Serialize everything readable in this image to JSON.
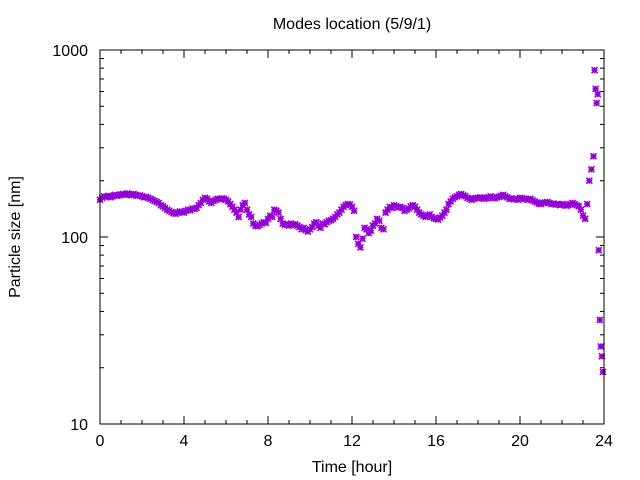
{
  "chart_data": {
    "type": "scatter",
    "title": "Modes location (5/9/1)",
    "xlabel": "Time [hour]",
    "ylabel": "Particle size [nm]",
    "xlim": [
      0,
      24
    ],
    "ylim": [
      10,
      1000
    ],
    "yscale": "log",
    "grid": false,
    "x_ticks": [
      "0",
      "4",
      "8",
      "12",
      "16",
      "20",
      "24"
    ],
    "y_ticks": [
      "10",
      "100",
      "1000"
    ],
    "marker_color": "#9400d3",
    "marker": "asterisk",
    "series": [
      {
        "x": [
          0.0,
          0.1,
          0.2,
          0.3,
          0.4,
          0.5,
          0.6,
          0.7,
          0.8,
          0.9,
          1.0,
          1.1,
          1.2,
          1.3,
          1.4,
          1.5,
          1.6,
          1.7,
          1.8,
          1.9,
          2.0,
          2.1,
          2.2,
          2.3,
          2.4,
          2.5,
          2.6,
          2.7,
          2.8,
          2.9,
          3.0,
          3.1,
          3.2,
          3.3,
          3.4,
          3.5,
          3.6,
          3.7,
          3.8,
          3.9,
          4.0,
          4.1,
          4.2,
          4.3,
          4.4,
          4.5,
          4.6,
          4.7,
          4.8,
          4.9,
          5.0,
          5.1,
          5.2,
          5.3,
          5.4,
          5.5,
          5.6,
          5.7,
          5.8,
          5.9,
          6.0,
          6.1,
          6.2,
          6.3,
          6.4,
          6.5,
          6.6,
          6.7,
          6.8,
          6.9,
          7.0,
          7.1,
          7.2,
          7.3,
          7.4,
          7.5,
          7.6,
          7.7,
          7.8,
          7.9,
          8.0,
          8.1,
          8.2,
          8.3,
          8.4,
          8.5,
          8.6,
          8.7,
          8.8,
          8.9,
          9.0,
          9.1,
          9.2,
          9.3,
          9.4,
          9.5,
          9.6,
          9.7,
          9.8,
          9.9,
          10.0,
          10.1,
          10.2,
          10.3,
          10.4,
          10.5,
          10.6,
          10.7,
          10.8,
          10.9,
          11.0,
          11.1,
          11.2,
          11.3,
          11.4,
          11.5,
          11.6,
          11.7,
          11.8,
          11.9,
          12.0,
          12.1,
          12.2,
          12.3,
          12.4,
          12.5,
          12.6,
          12.7,
          12.8,
          12.9,
          13.0,
          13.1,
          13.2,
          13.3,
          13.4,
          13.5,
          13.6,
          13.7,
          13.8,
          13.9,
          14.0,
          14.1,
          14.2,
          14.3,
          14.4,
          14.5,
          14.6,
          14.7,
          14.8,
          14.9,
          15.0,
          15.1,
          15.2,
          15.3,
          15.4,
          15.5,
          15.6,
          15.7,
          15.8,
          15.9,
          16.0,
          16.1,
          16.2,
          16.3,
          16.4,
          16.5,
          16.6,
          16.7,
          16.8,
          16.9,
          17.0,
          17.1,
          17.2,
          17.3,
          17.4,
          17.5,
          17.6,
          17.7,
          17.8,
          17.9,
          18.0,
          18.1,
          18.2,
          18.3,
          18.4,
          18.5,
          18.6,
          18.7,
          18.8,
          18.9,
          19.0,
          19.1,
          19.2,
          19.3,
          19.4,
          19.5,
          19.6,
          19.7,
          19.8,
          19.9,
          20.0,
          20.1,
          20.2,
          20.3,
          20.4,
          20.5,
          20.6,
          20.7,
          20.8,
          20.9,
          21.0,
          21.1,
          21.2,
          21.3,
          21.4,
          21.5,
          21.6,
          21.7,
          21.8,
          21.9,
          22.0,
          22.1,
          22.2,
          22.3,
          22.4,
          22.5,
          22.6,
          22.7,
          22.8,
          22.9,
          23.0,
          23.1,
          23.2,
          23.3,
          23.4,
          23.5,
          23.55,
          23.6,
          23.65,
          23.7,
          23.75,
          23.8,
          23.85,
          23.9,
          23.95
        ],
        "y": [
          158,
          162,
          165,
          164,
          166,
          163,
          165,
          168,
          166,
          167,
          169,
          170,
          168,
          171,
          169,
          167,
          170,
          168,
          166,
          167,
          165,
          163,
          164,
          162,
          160,
          158,
          156,
          154,
          152,
          148,
          146,
          143,
          140,
          138,
          136,
          134,
          133,
          135,
          137,
          136,
          135,
          138,
          140,
          139,
          142,
          141,
          143,
          148,
          152,
          158,
          162,
          160,
          155,
          152,
          156,
          158,
          160,
          159,
          161,
          160,
          158,
          155,
          150,
          145,
          140,
          135,
          128,
          140,
          148,
          152,
          140,
          132,
          128,
          118,
          115,
          114,
          116,
          118,
          120,
          119,
          125,
          130,
          128,
          140,
          138,
          135,
          125,
          118,
          116,
          117,
          115,
          118,
          116,
          117,
          115,
          113,
          110,
          112,
          109,
          107,
          110,
          113,
          118,
          120,
          115,
          112,
          118,
          117,
          120,
          122,
          123,
          125,
          128,
          132,
          135,
          140,
          145,
          148,
          150,
          149,
          145,
          138,
          100,
          92,
          88,
          98,
          112,
          110,
          105,
          108,
          115,
          118,
          125,
          122,
          112,
          110,
          135,
          140,
          145,
          143,
          148,
          146,
          144,
          145,
          143,
          138,
          140,
          142,
          146,
          148,
          145,
          140,
          135,
          132,
          130,
          128,
          130,
          132,
          128,
          126,
          125,
          124,
          127,
          130,
          135,
          140,
          150,
          155,
          160,
          163,
          165,
          168,
          170,
          167,
          165,
          162,
          160,
          158,
          160,
          162,
          161,
          163,
          162,
          160,
          161,
          163,
          165,
          162,
          161,
          163,
          164,
          166,
          168,
          165,
          163,
          160,
          161,
          159,
          160,
          158,
          162,
          161,
          160,
          159,
          158,
          160,
          157,
          155,
          153,
          151,
          150,
          152,
          153,
          154,
          152,
          150,
          151,
          149,
          150,
          148,
          150,
          149,
          147,
          148,
          150,
          152,
          150,
          148,
          146,
          140,
          130,
          125,
          150,
          200,
          230,
          270,
          780,
          620,
          520,
          580,
          85,
          36,
          26,
          23,
          19
        ]
      }
    ]
  }
}
